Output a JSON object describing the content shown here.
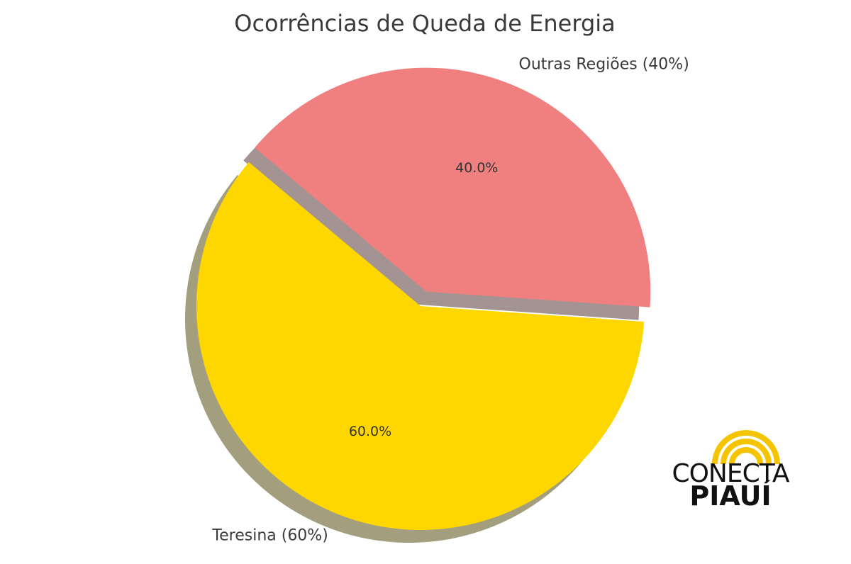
{
  "chart_data": {
    "type": "pie",
    "title": "Ocorrências de Queda de Energia",
    "categories": [
      "Teresina",
      "Outras Regiões"
    ],
    "values": [
      60,
      40
    ],
    "labels": [
      "Teresina (60%)",
      "Outras Regiões (40%)"
    ],
    "autopct": [
      "60.0%",
      "40.0%"
    ],
    "colors": [
      "#ffd700",
      "#f08080"
    ],
    "shadow_colors": [
      "#a39e7e",
      "#a39393"
    ],
    "exploded": [
      false,
      true
    ],
    "start_angle_deg": 140,
    "shadow": true
  },
  "logo": {
    "line1": "CONECTA",
    "line2": "PIAUÍ",
    "accent": "#f5c400"
  }
}
